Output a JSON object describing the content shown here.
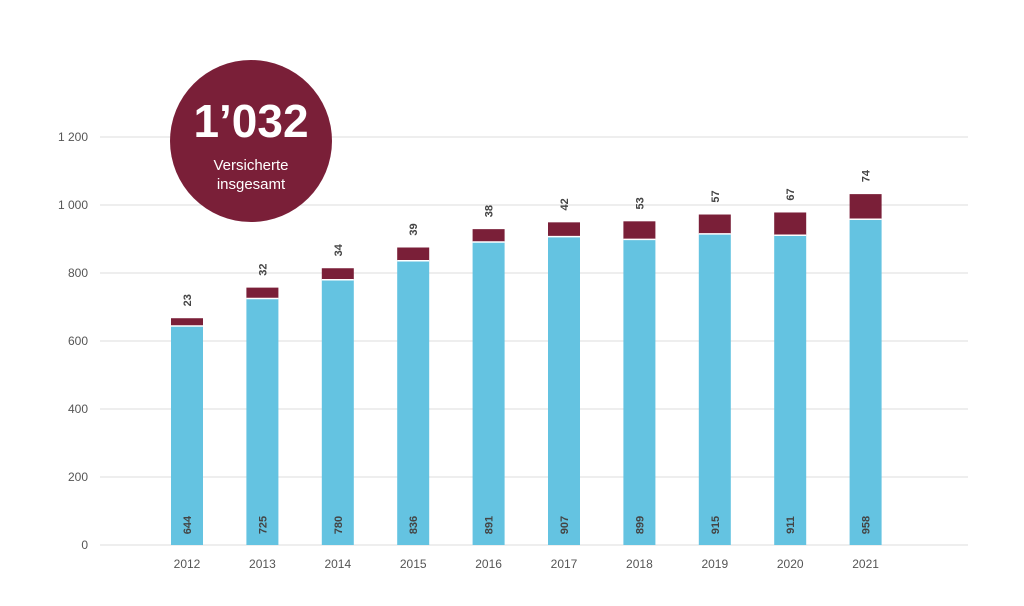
{
  "badge": {
    "value": "1’032",
    "label": "Versicherte insgesamt",
    "color": "#7A1F38"
  },
  "chart_data": {
    "type": "bar",
    "stacked": true,
    "categories": [
      "2012",
      "2013",
      "2014",
      "2015",
      "2016",
      "2017",
      "2018",
      "2019",
      "2020",
      "2021"
    ],
    "series": [
      {
        "values": [
          644,
          725,
          780,
          836,
          891,
          907,
          899,
          915,
          911,
          958
        ],
        "color": "#64C3E1"
      },
      {
        "values": [
          23,
          32,
          34,
          39,
          38,
          42,
          53,
          57,
          67,
          74
        ],
        "color": "#7A1F38"
      }
    ],
    "yticks": [
      0,
      200,
      400,
      600,
      800,
      1000,
      1200
    ],
    "ytick_labels": [
      "0",
      "200",
      "400",
      "600",
      "800",
      "1 000",
      "1 200"
    ],
    "ylim": [
      0,
      1200
    ],
    "grid": true,
    "legend": "none"
  }
}
